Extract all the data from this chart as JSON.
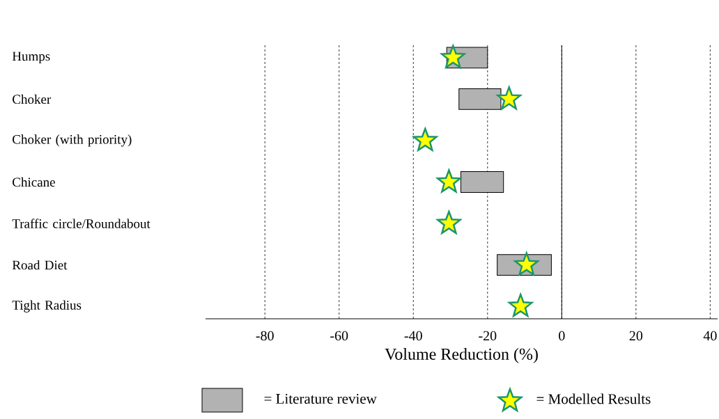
{
  "chart_data": {
    "type": "bar",
    "orientation": "horizontal",
    "xlabel": "Volume Reduction (%)",
    "categories": [
      "Humps",
      "Choker",
      "Choker (with priority)",
      "Chicane",
      "Traffic circle/Roundabout",
      "Road Diet",
      "Tight Radius"
    ],
    "series": [
      {
        "name": "= Literature review",
        "color": "#b2b2b2",
        "base": [
          -31,
          -27.7,
          null,
          -27.2,
          null,
          -17.4,
          null
        ],
        "values": [
          11,
          11.3,
          null,
          11.5,
          null,
          14.6,
          null
        ]
      },
      {
        "name": "= Modelled Results",
        "type": "scatter",
        "marker": "star",
        "color": "#ffff00",
        "values": [
          -29.3,
          -14.2,
          -36.8,
          -30.4,
          -30.4,
          -9.5,
          -11.1
        ]
      }
    ],
    "xlim": [
      -96,
      42
    ],
    "xticks": [
      -80,
      -60,
      -40,
      -20,
      0,
      20,
      40
    ],
    "grid": "x",
    "ref_lines": [
      {
        "axis": "x",
        "value": 0,
        "line_style": "solid"
      }
    ],
    "legend": "bottom"
  }
}
